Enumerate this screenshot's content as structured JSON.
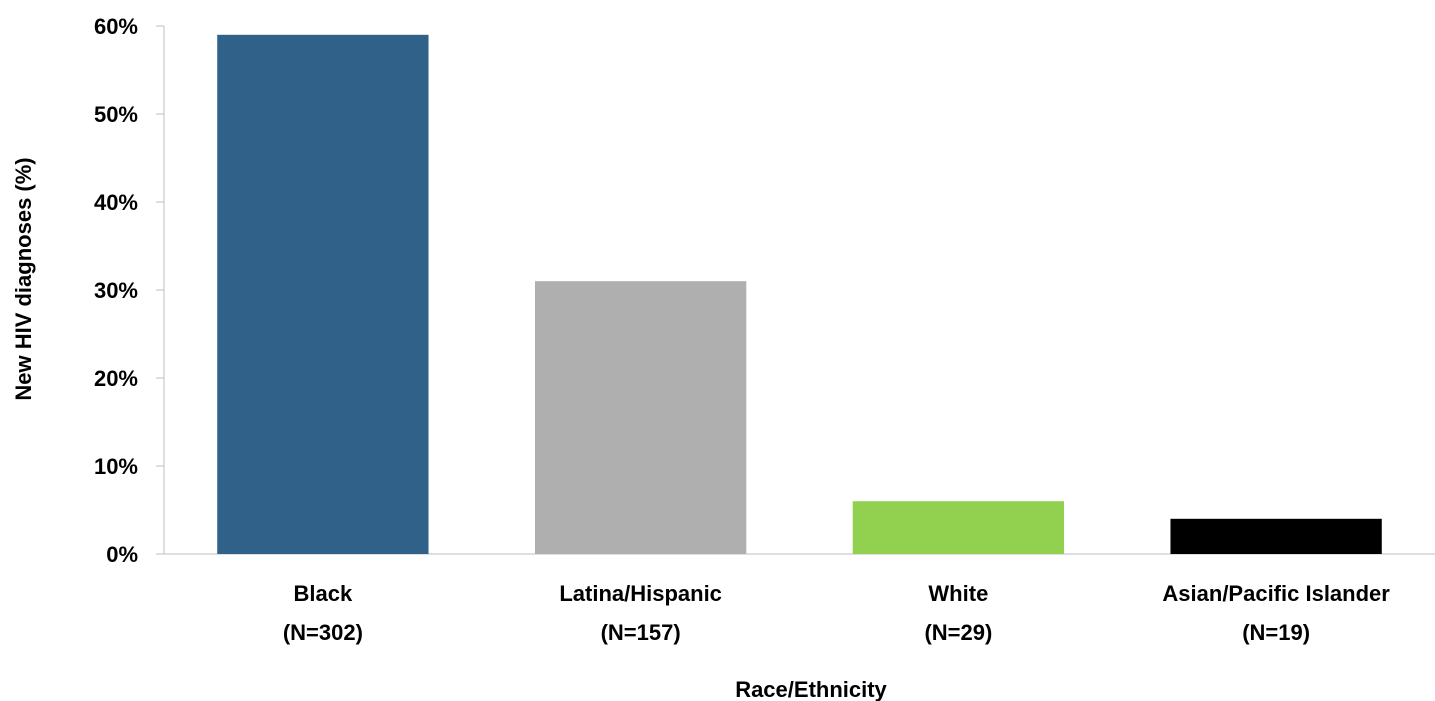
{
  "chart_data": {
    "type": "bar",
    "categories": [
      {
        "name": "Black",
        "n": "(N=302)"
      },
      {
        "name": "Latina/Hispanic",
        "n": "(N=157)"
      },
      {
        "name": "White",
        "n": "(N=29)"
      },
      {
        "name": "Asian/Pacific Islander",
        "n": "(N=19)"
      }
    ],
    "values": [
      59,
      31,
      6,
      4
    ],
    "colors": [
      "#2f6189",
      "#afafaf",
      "#92d050",
      "#000000"
    ],
    "xlabel": "Race/Ethnicity",
    "ylabel": "New HIV diagnoses (%)",
    "ylim": [
      0,
      60
    ],
    "yticks": [
      0,
      10,
      20,
      30,
      40,
      50,
      60
    ],
    "ytick_labels": [
      "0%",
      "10%",
      "20%",
      "30%",
      "40%",
      "50%",
      "60%"
    ],
    "grid": false,
    "legend": "none"
  }
}
